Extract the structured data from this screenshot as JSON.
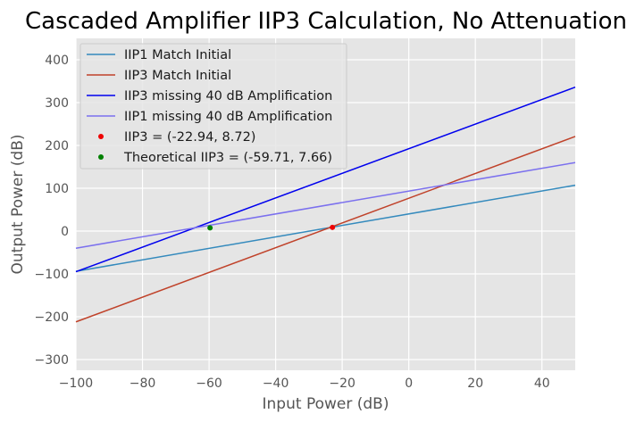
{
  "chart_data": {
    "type": "line",
    "title": "Cascaded Amplifier IIP3 Calculation, No Attenuation",
    "xlabel": "Input Power (dB)",
    "ylabel": "Output Power (dB)",
    "xlim": [
      -100,
      50
    ],
    "ylim": [
      -325,
      450
    ],
    "xticks": [
      -100,
      -80,
      -60,
      -40,
      -20,
      0,
      20,
      40
    ],
    "yticks": [
      -300,
      -200,
      -100,
      0,
      100,
      200,
      300,
      400
    ],
    "grid": true,
    "background": "#e5e5e5",
    "legend_position": "top-left",
    "series": [
      {
        "name": "IIP1 Match Initial",
        "kind": "line",
        "color": "#348abd",
        "x": [
          -100,
          50
        ],
        "y": [
          -94.0,
          107.0
        ]
      },
      {
        "name": "IIP3 Match Initial",
        "kind": "line",
        "color": "#c0422a",
        "x": [
          -100,
          50
        ],
        "y": [
          -212.0,
          221.0
        ]
      },
      {
        "name": "IIP3 missing 40 dB Amplification",
        "kind": "line",
        "color": "#0000ee",
        "x": [
          -100,
          50
        ],
        "y": [
          -95.0,
          336.0
        ]
      },
      {
        "name": "IIP1 missing 40 dB Amplification",
        "kind": "line",
        "color": "#7b70ee",
        "x": [
          -100,
          50
        ],
        "y": [
          -40.0,
          160.0
        ]
      },
      {
        "name": "IIP3 = (-22.94, 8.72)",
        "kind": "point",
        "color": "#ee0000",
        "x": [
          -22.94
        ],
        "y": [
          8.72
        ]
      },
      {
        "name": "Theoretical IIP3 = (-59.71, 7.66)",
        "kind": "point",
        "color": "#008000",
        "x": [
          -59.71
        ],
        "y": [
          7.66
        ]
      }
    ]
  }
}
